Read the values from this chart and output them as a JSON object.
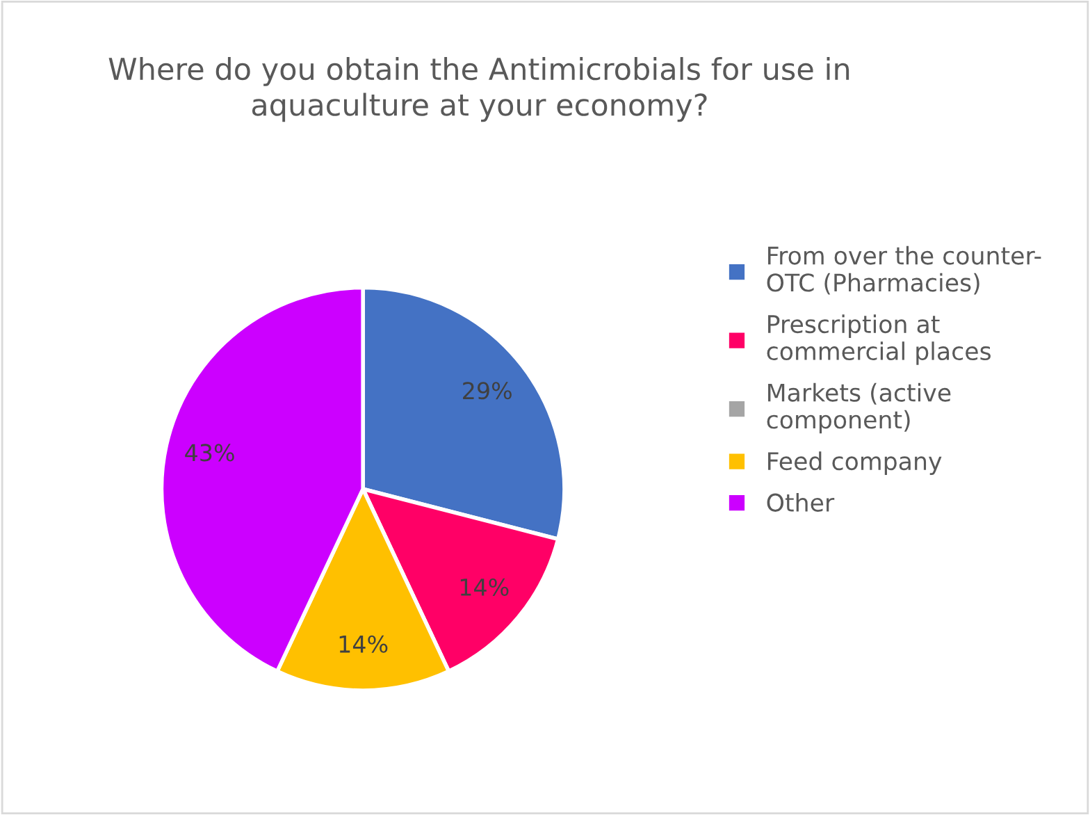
{
  "chart_data": {
    "type": "pie",
    "title": "Where do you obtain the Antimicrobials for use in\naquaculture at your economy?",
    "categories": [
      "From over the counter-\nOTC (Pharmacies)",
      "Prescription at\ncommercial places",
      "Markets (active\ncomponent)",
      "Feed company",
      "Other"
    ],
    "values": [
      29,
      14,
      0,
      14,
      43
    ],
    "colors": [
      "#4472c4",
      "#ff0066",
      "#a5a5a5",
      "#ffc000",
      "#cc00ff"
    ],
    "value_labels": [
      "29%",
      "14%",
      null,
      "14%",
      "43%"
    ],
    "legend": "right"
  }
}
